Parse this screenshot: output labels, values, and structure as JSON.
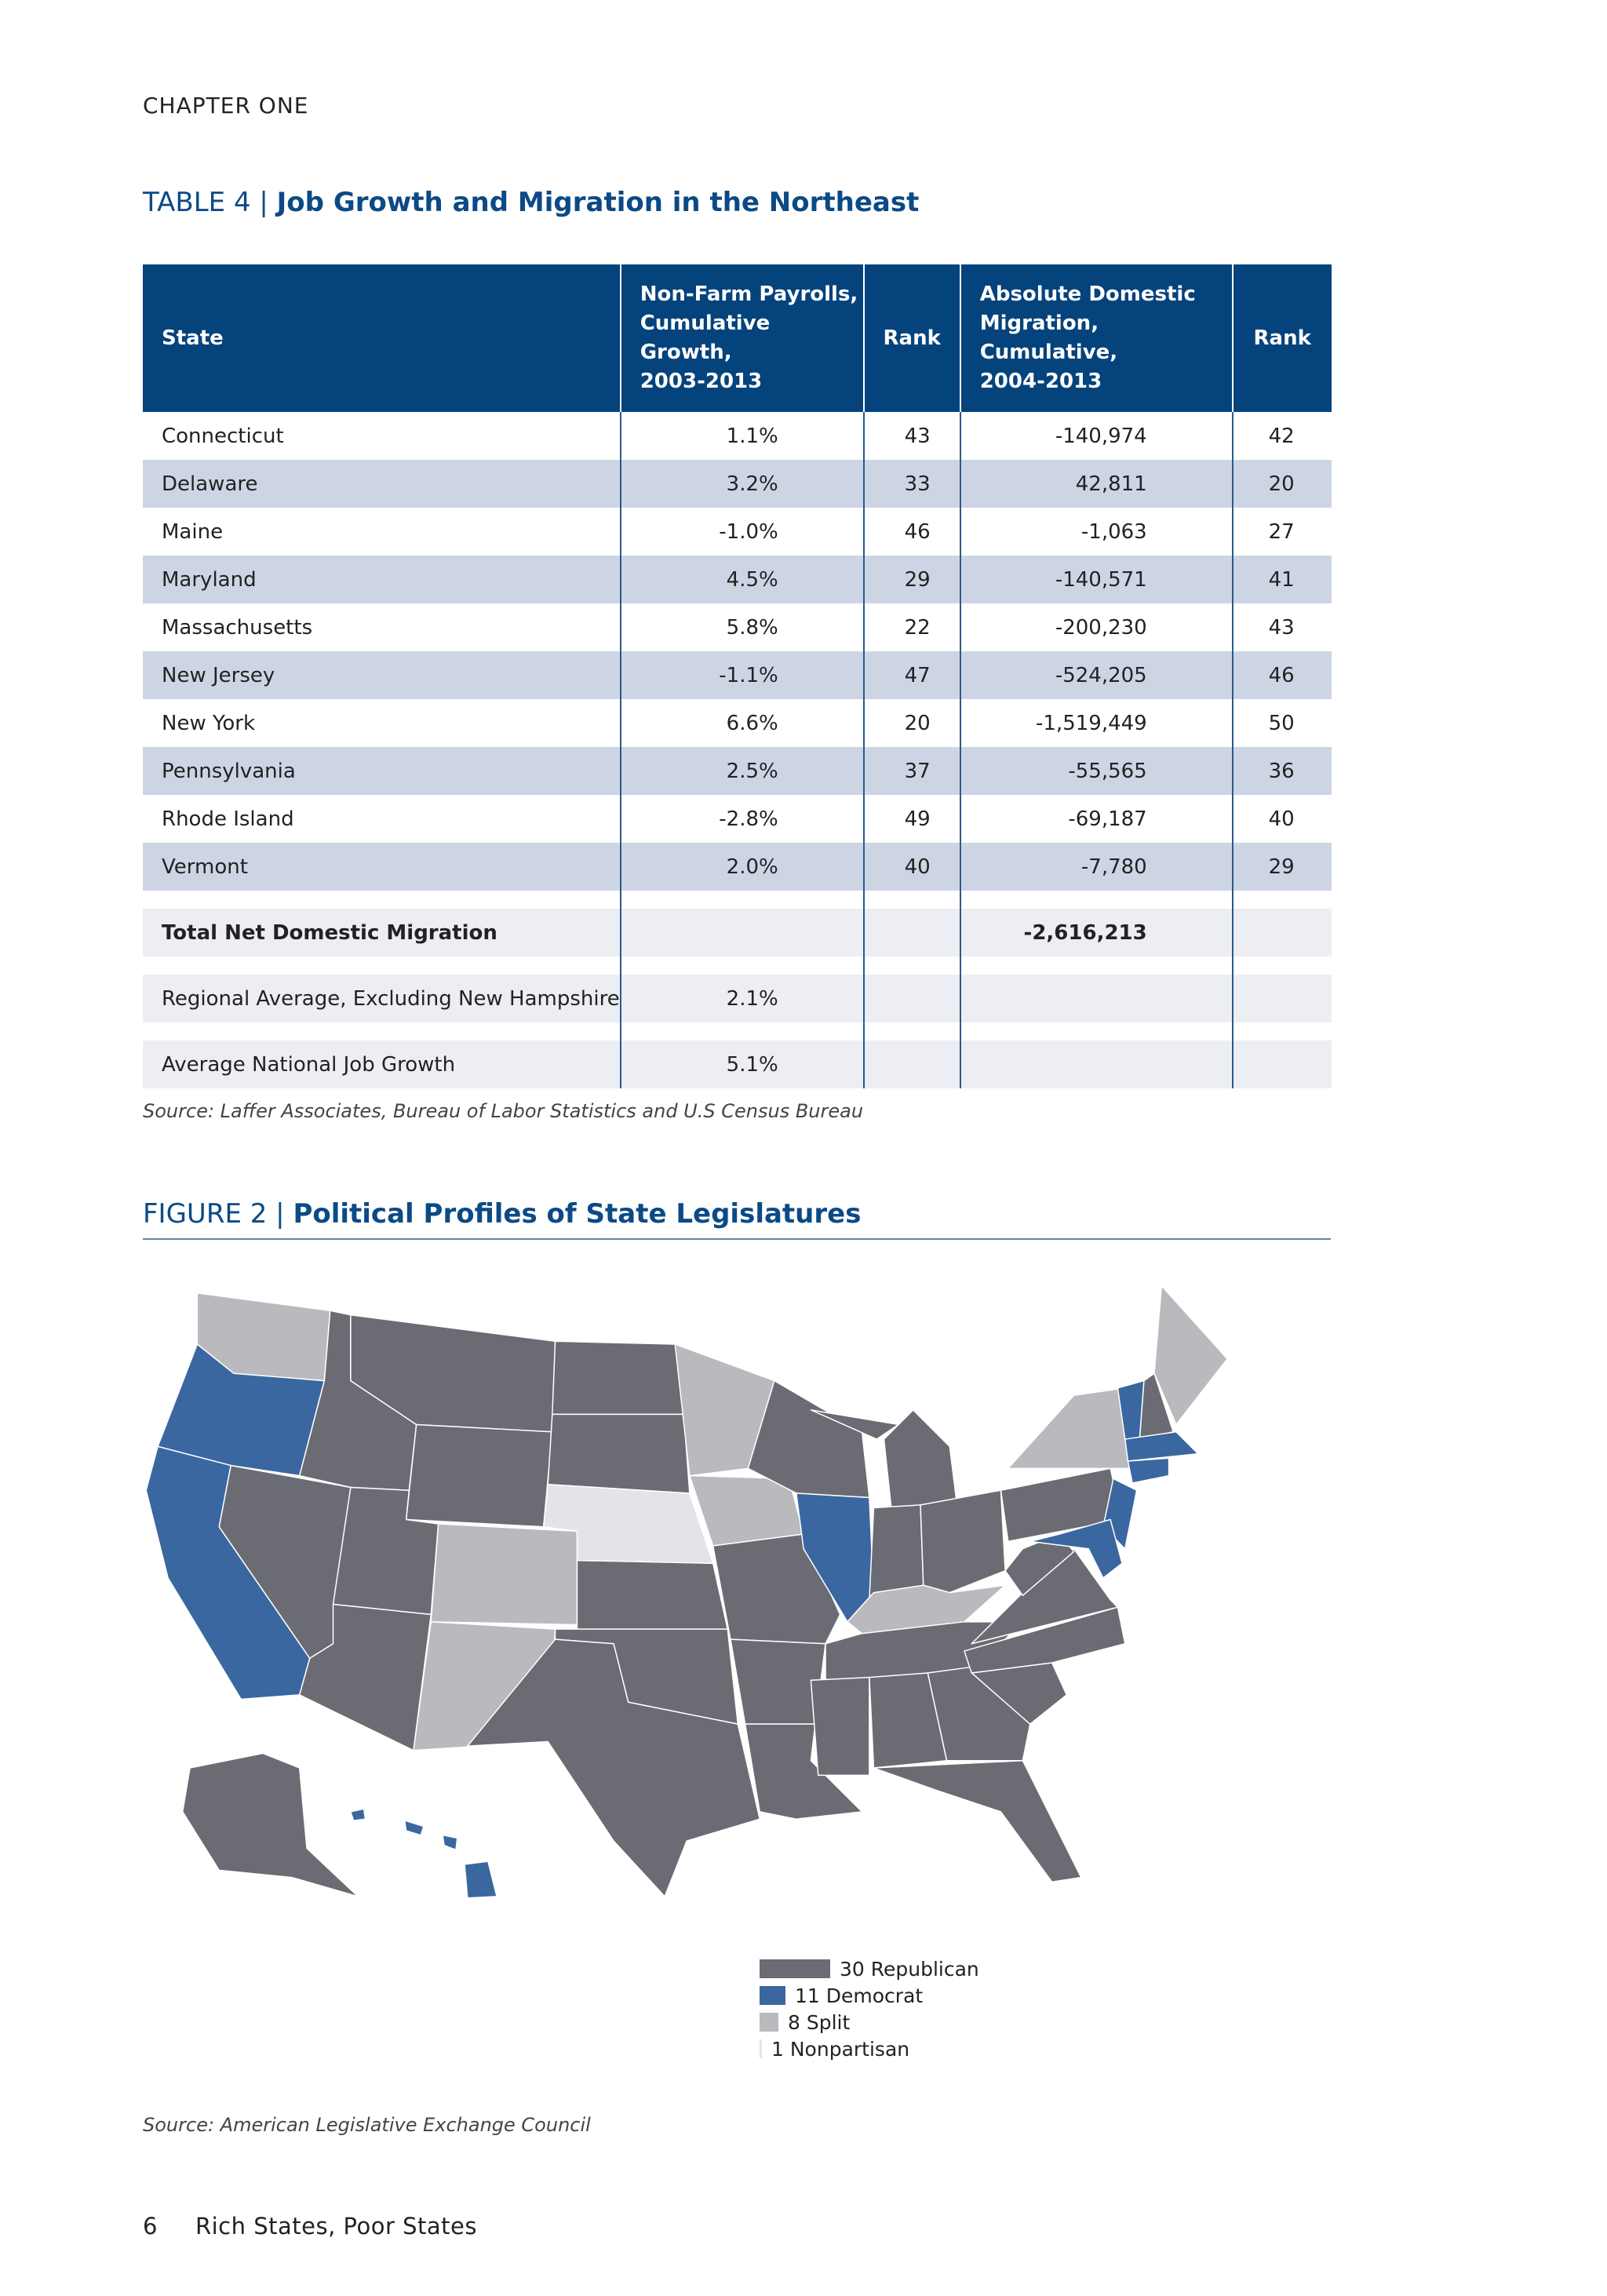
{
  "header": {
    "chapter": "CHAPTER ONE"
  },
  "table": {
    "label": "TABLE 4 |",
    "title": "Job Growth and Migration in the Northeast",
    "columns": [
      "State",
      "Non-Farm Payrolls,\nCumulative Growth,\n2003-2013",
      "Rank",
      "Absolute Domestic\nMigration, Cumulative,\n2004-2013",
      "Rank"
    ],
    "rows": [
      [
        "Connecticut",
        "1.1%",
        "43",
        "-140,974",
        "42"
      ],
      [
        "Delaware",
        "3.2%",
        "33",
        "42,811",
        "20"
      ],
      [
        "Maine",
        "-1.0%",
        "46",
        "-1,063",
        "27"
      ],
      [
        "Maryland",
        "4.5%",
        "29",
        "-140,571",
        "41"
      ],
      [
        "Massachusetts",
        "5.8%",
        "22",
        "-200,230",
        "43"
      ],
      [
        "New Jersey",
        "-1.1%",
        "47",
        "-524,205",
        "46"
      ],
      [
        "New York",
        "6.6%",
        "20",
        "-1,519,449",
        "50"
      ],
      [
        "Pennsylvania",
        "2.5%",
        "37",
        "-55,565",
        "36"
      ],
      [
        "Rhode Island",
        "-2.8%",
        "49",
        "-69,187",
        "40"
      ],
      [
        "Vermont",
        "2.0%",
        "40",
        "-7,780",
        "29"
      ]
    ],
    "summary": [
      [
        "Total Net Domestic Migration",
        "",
        "",
        "-2,616,213",
        ""
      ],
      [
        "Regional Average, Excluding New Hampshire",
        "2.1%",
        "",
        "",
        ""
      ],
      [
        "Average National Job Growth",
        "5.1%",
        "",
        "",
        ""
      ]
    ],
    "source": "Source: Laffer Associates, Bureau of Labor Statistics and U.S Census Bureau"
  },
  "figure": {
    "label": "FIGURE 2 |",
    "title": "Political Profiles of State Legislatures",
    "legend": [
      {
        "count": 30,
        "name": "Republican",
        "color": "#6b6b73"
      },
      {
        "count": 11,
        "name": "Democrat",
        "color": "#3a67a0"
      },
      {
        "count": 8,
        "name": "Split",
        "color": "#b9b9be"
      },
      {
        "count": 1,
        "name": "Nonpartisan",
        "color": "#e3e3e8"
      }
    ],
    "source": "Source: American Legislative Exchange Council"
  },
  "footer": {
    "page": "6",
    "title": "Rich States, Poor States"
  }
}
